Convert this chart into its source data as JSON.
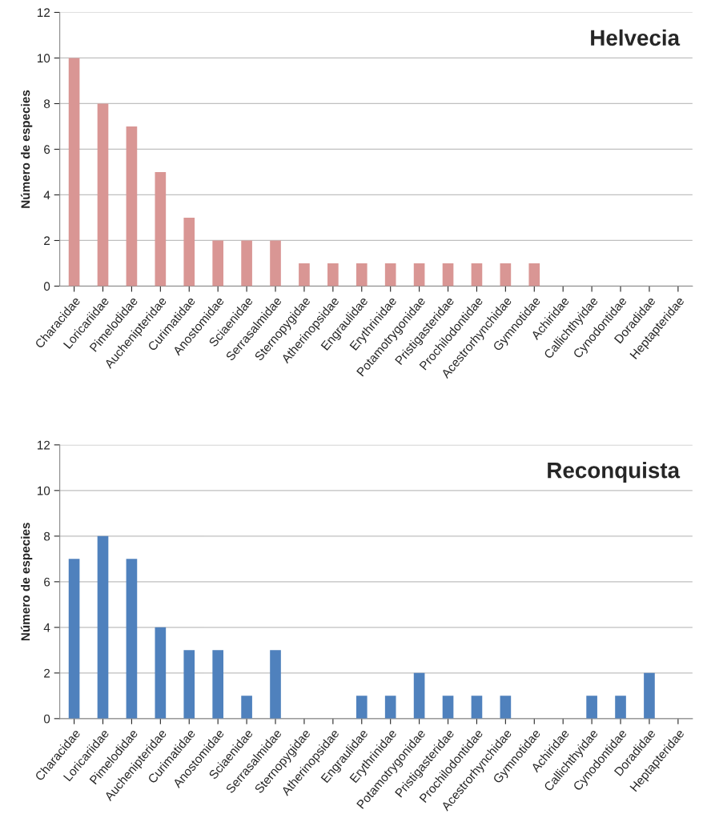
{
  "chart_data": [
    {
      "type": "bar",
      "title": "Helvecia",
      "ylabel": "Número de especies",
      "categories": [
        "Characidae",
        "Loricariidae",
        "Pimelodidae",
        "Auchenipteridae",
        "Curimatidae",
        "Anostomidae",
        "Sciaenidae",
        "Serrasalmidae",
        "Sternopygidae",
        "Atherinopsidae",
        "Engraulidae",
        "Erythrinidae",
        "Potamotrygonidae",
        "Pristigasteridae",
        "Prochilodontidae",
        "Acestrorhynchidae",
        "Gymnotidae",
        "Achiridae",
        "Callichthyidae",
        "Cynodontidae",
        "Doradidae",
        "Heptapteridae"
      ],
      "series": [
        {
          "color": "#d99694",
          "values": [
            10,
            8,
            7,
            5,
            3,
            2,
            2,
            2,
            1,
            1,
            1,
            1,
            1,
            1,
            1,
            1,
            1,
            0,
            0,
            0,
            0,
            0
          ]
        }
      ],
      "ylim": [
        0,
        12
      ],
      "yticks": [
        0,
        2,
        4,
        6,
        8,
        10,
        12
      ],
      "grid": "y",
      "legend": false
    },
    {
      "type": "bar",
      "title": "Reconquista",
      "ylabel": "Número de especies",
      "categories": [
        "Characidae",
        "Loricariidae",
        "Pimelodidae",
        "Auchenipteridae",
        "Curimatidae",
        "Anostomidae",
        "Sciaenidae",
        "Serrasalmidae",
        "Sternopygidae",
        "Atherinopsidae",
        "Engraulidae",
        "Erythrinidae",
        "Potamotrygonidae",
        "Pristigasteridae",
        "Prochilodontidae",
        "Acestrorhynchidae",
        "Gymnotidae",
        "Achiridae",
        "Callichthyidae",
        "Cynodontidae",
        "Doradidae",
        "Heptapteridae"
      ],
      "series": [
        {
          "color": "#4f81bd",
          "values": [
            7,
            8,
            7,
            4,
            3,
            3,
            1,
            3,
            0,
            0,
            1,
            1,
            2,
            1,
            1,
            1,
            0,
            0,
            1,
            1,
            2,
            0
          ]
        }
      ],
      "ylim": [
        0,
        12
      ],
      "yticks": [
        0,
        2,
        4,
        6,
        8,
        10,
        12
      ],
      "grid": "y",
      "legend": false
    }
  ]
}
